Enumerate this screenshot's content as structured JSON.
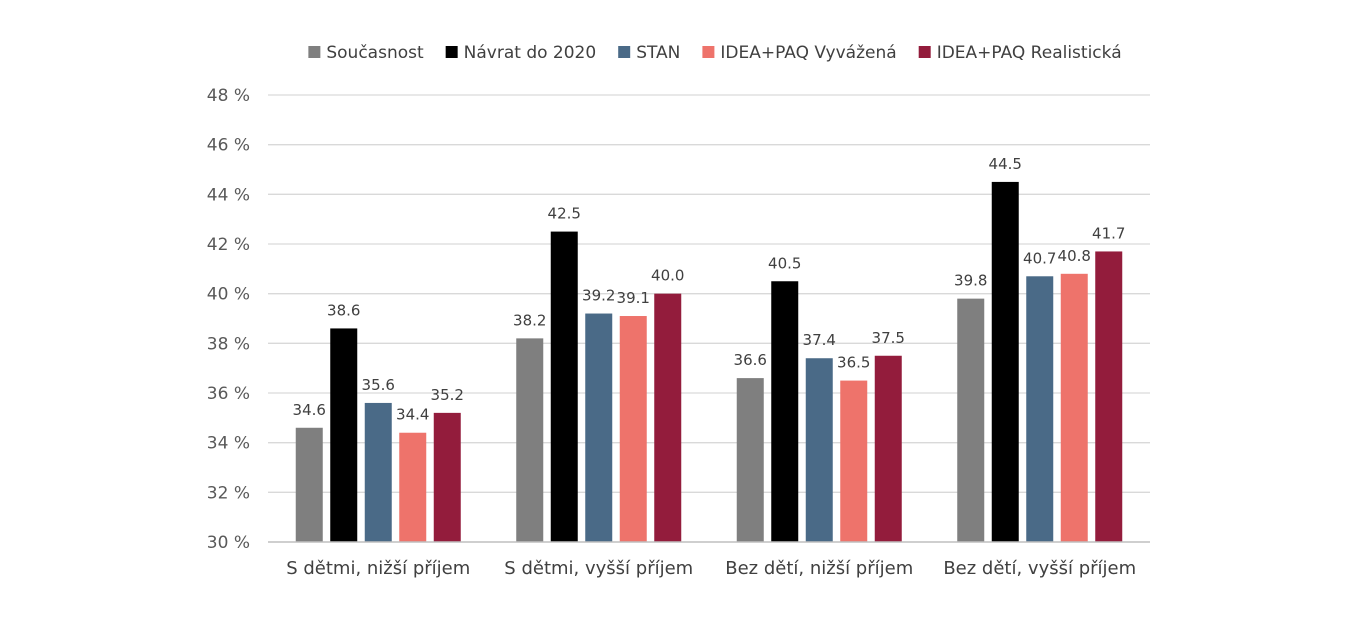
{
  "chart_data": {
    "type": "bar",
    "title": "",
    "xlabel": "",
    "ylabel": "",
    "ylim": [
      30,
      48
    ],
    "y_tick_step": 2,
    "y_tick_suffix": " %",
    "y_tick_labels": [
      "30 %",
      "32 %",
      "34 %",
      "36 %",
      "38 %",
      "40 %",
      "42 %",
      "44 %",
      "46 %",
      "48 %"
    ],
    "grid": true,
    "legend_position": "top",
    "categories": [
      "S dětmi, nižší příjem",
      "S dětmi, vyšší příjem",
      "Bez dětí, nižší příjem",
      "Bez dětí, vyšší příjem"
    ],
    "series": [
      {
        "name": "Současnost",
        "color": "#7f7f7f",
        "values": [
          34.6,
          38.2,
          36.6,
          39.8
        ],
        "labels": [
          "34.6",
          "38.2",
          "36.6",
          "39.8"
        ]
      },
      {
        "name": "Návrat do 2020",
        "color": "#000000",
        "values": [
          38.6,
          42.5,
          40.5,
          44.5
        ],
        "labels": [
          "38.6",
          "42.5",
          "40.5",
          "44.5"
        ]
      },
      {
        "name": "STAN",
        "color": "#4a6a87",
        "values": [
          35.6,
          39.2,
          37.4,
          40.7
        ],
        "labels": [
          "35.6",
          "39.2",
          "37.4",
          "40.7"
        ]
      },
      {
        "name": "IDEA+PAQ Vyvážená",
        "color": "#ee736b",
        "values": [
          34.4,
          39.1,
          36.5,
          40.8
        ],
        "labels": [
          "34.4",
          "39.1",
          "36.5",
          "40.8"
        ]
      },
      {
        "name": "IDEA+PAQ Realistická",
        "color": "#931c3c",
        "values": [
          35.2,
          40.0,
          37.5,
          41.7
        ],
        "labels": [
          "35.2",
          "40.0",
          "37.5",
          "41.7"
        ]
      }
    ]
  }
}
